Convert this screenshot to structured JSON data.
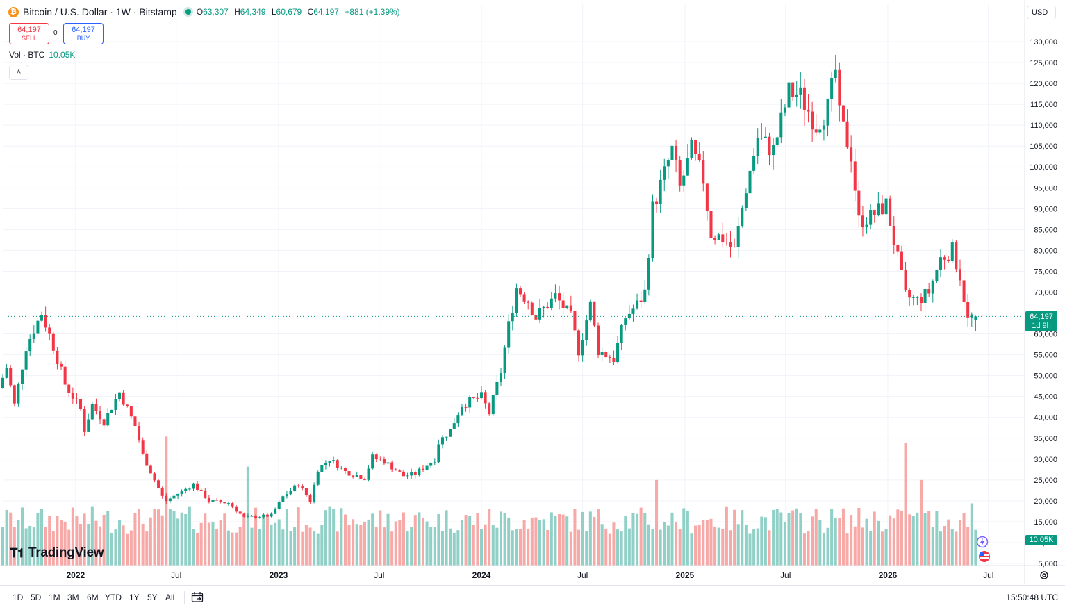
{
  "header": {
    "coin_glyph": "₿",
    "title": "Bitcoin / U.S. Dollar · 1W · Bitstamp",
    "o_label": "O",
    "o_value": "63,307",
    "h_label": "H",
    "h_value": "64,349",
    "l_label": "L",
    "l_value": "60,679",
    "c_label": "C",
    "c_value": "64,197",
    "change": "+881 (+1.39%)"
  },
  "trade": {
    "sell_price": "64,197",
    "sell_label": "SELL",
    "spread": "0",
    "buy_price": "64,197",
    "buy_label": "BUY"
  },
  "volume_legend": {
    "label": "Vol · BTC",
    "value": "10.05K"
  },
  "currency": "USD",
  "logo": "TradingView",
  "price_tag": {
    "price": "64,197",
    "countdown": "1d 9h"
  },
  "volume_tag": "10.05K",
  "ranges": [
    "1D",
    "5D",
    "1M",
    "3M",
    "6M",
    "YTD",
    "1Y",
    "5Y",
    "All"
  ],
  "clock": "15:50:48 UTC",
  "colors": {
    "up": "#089981",
    "down": "#f23645",
    "vol_up": "#91d0c6",
    "vol_down": "#f7a9a7",
    "grid": "#f0f3fa"
  },
  "icons": [
    "bitcoin-icon",
    "live-dot-icon",
    "chevron-up-icon",
    "calendar-icon",
    "gear-icon",
    "tradingview-logo-icon"
  ],
  "chart_data": {
    "type": "candlestick",
    "title": "Bitcoin / U.S. Dollar · 1W · Bitstamp",
    "y_ticks": [
      5000,
      10000,
      15000,
      20000,
      25000,
      30000,
      35000,
      40000,
      45000,
      50000,
      55000,
      60000,
      65000,
      70000,
      75000,
      80000,
      85000,
      90000,
      95000,
      100000,
      105000,
      110000,
      115000,
      120000,
      125000,
      130000
    ],
    "y_tick_labels": [
      "5,000",
      "10,000",
      "15,000",
      "20,000",
      "25,000",
      "30,000",
      "35,000",
      "40,000",
      "45,000",
      "50,000",
      "55,000",
      "60,000",
      "65,000",
      "70,000",
      "75,000",
      "80,000",
      "85,000",
      "90,000",
      "95,000",
      "100,000",
      "105,000",
      "110,000",
      "115,000",
      "120,000",
      "125,000",
      "130,000"
    ],
    "x_ticks": [
      {
        "date": "2022-01-01",
        "label": "2022",
        "major": true
      },
      {
        "date": "2022-07-01",
        "label": "Jul",
        "major": false
      },
      {
        "date": "2023-01-01",
        "label": "2023",
        "major": true
      },
      {
        "date": "2023-07-01",
        "label": "Jul",
        "major": false
      },
      {
        "date": "2024-01-01",
        "label": "2024",
        "major": true
      },
      {
        "date": "2024-07-01",
        "label": "Jul",
        "major": false
      },
      {
        "date": "2025-01-01",
        "label": "2025",
        "major": true
      },
      {
        "date": "2025-07-01",
        "label": "Jul",
        "major": false
      },
      {
        "date": "2026-01-01",
        "label": "2026",
        "major": true
      },
      {
        "date": "2026-07-01",
        "label": "Jul",
        "major": false
      }
    ],
    "x_range": [
      "2021-08-23",
      "2026-07-20"
    ],
    "y_range": [
      5000,
      130000
    ],
    "current_price": 64197,
    "grid": true,
    "price_keyframes": [
      [
        "2021-08-23",
        47000
      ],
      [
        "2021-09-06",
        52000
      ],
      [
        "2021-09-20",
        43000
      ],
      [
        "2021-10-11",
        57000
      ],
      [
        "2021-10-25",
        61000
      ],
      [
        "2021-11-08",
        65000
      ],
      [
        "2021-11-29",
        57000
      ],
      [
        "2021-12-20",
        48000
      ],
      [
        "2022-01-17",
        42000
      ],
      [
        "2022-01-24",
        37000
      ],
      [
        "2022-02-07",
        43000
      ],
      [
        "2022-02-28",
        39000
      ],
      [
        "2022-03-28",
        46000
      ],
      [
        "2022-04-25",
        38000
      ],
      [
        "2022-05-09",
        31000
      ],
      [
        "2022-06-13",
        21000
      ],
      [
        "2022-06-20",
        20000
      ],
      [
        "2022-08-08",
        24000
      ],
      [
        "2022-09-05",
        20000
      ],
      [
        "2022-10-10",
        19500
      ],
      [
        "2022-11-07",
        16000
      ],
      [
        "2022-12-26",
        16500
      ],
      [
        "2023-01-16",
        21000
      ],
      [
        "2023-02-13",
        24000
      ],
      [
        "2023-03-06",
        20000
      ],
      [
        "2023-03-20",
        27500
      ],
      [
        "2023-04-10",
        30000
      ],
      [
        "2023-05-08",
        27000
      ],
      [
        "2023-06-12",
        25500
      ],
      [
        "2023-06-26",
        30500
      ],
      [
        "2023-07-17",
        29500
      ],
      [
        "2023-08-21",
        26000
      ],
      [
        "2023-09-11",
        26500
      ],
      [
        "2023-10-16",
        30000
      ],
      [
        "2023-10-23",
        34000
      ],
      [
        "2023-11-13",
        37000
      ],
      [
        "2023-12-04",
        43000
      ],
      [
        "2024-01-08",
        45000
      ],
      [
        "2024-01-22",
        41000
      ],
      [
        "2024-02-12",
        51000
      ],
      [
        "2024-02-26",
        62000
      ],
      [
        "2024-03-11",
        71000
      ],
      [
        "2024-04-01",
        68000
      ],
      [
        "2024-04-15",
        64000
      ],
      [
        "2024-05-20",
        69000
      ],
      [
        "2024-06-17",
        64000
      ],
      [
        "2024-07-01",
        56000
      ],
      [
        "2024-07-22",
        67000
      ],
      [
        "2024-08-05",
        56000
      ],
      [
        "2024-09-02",
        54000
      ],
      [
        "2024-09-23",
        64000
      ],
      [
        "2024-10-14",
        67000
      ],
      [
        "2024-10-28",
        70000
      ],
      [
        "2024-11-11",
        90000
      ],
      [
        "2024-12-16",
        104000
      ],
      [
        "2024-12-30",
        95000
      ],
      [
        "2025-01-20",
        104000
      ],
      [
        "2025-02-10",
        97000
      ],
      [
        "2025-02-24",
        84000
      ],
      [
        "2025-03-17",
        83000
      ],
      [
        "2025-04-07",
        80000
      ],
      [
        "2025-04-28",
        95000
      ],
      [
        "2025-05-19",
        107000
      ],
      [
        "2025-06-16",
        104000
      ],
      [
        "2025-07-14",
        118000
      ],
      [
        "2025-08-04",
        117000
      ],
      [
        "2025-09-01",
        110000
      ],
      [
        "2025-09-22",
        114000
      ],
      [
        "2025-10-06",
        123000
      ],
      [
        "2025-10-13",
        112000
      ],
      [
        "2025-11-03",
        103000
      ],
      [
        "2025-11-17",
        87000
      ],
      [
        "2025-12-08",
        88000
      ],
      [
        "2026-01-05",
        91000
      ],
      [
        "2026-01-26",
        78000
      ],
      [
        "2026-02-09",
        69000
      ],
      [
        "2026-03-02",
        68000
      ],
      [
        "2026-03-23",
        70000
      ],
      [
        "2026-04-13",
        78000
      ],
      [
        "2026-05-04",
        80000
      ],
      [
        "2026-05-18",
        74000
      ],
      [
        "2026-06-01",
        63300
      ],
      [
        "2026-06-08",
        64197
      ]
    ],
    "volume_spikes": [
      [
        "2022-06-13",
        38000
      ],
      [
        "2022-11-07",
        29000
      ],
      [
        "2024-11-11",
        25000
      ],
      [
        "2026-02-02",
        36000
      ],
      [
        "2026-03-02",
        25000
      ],
      [
        "2026-06-01",
        18000
      ]
    ]
  }
}
